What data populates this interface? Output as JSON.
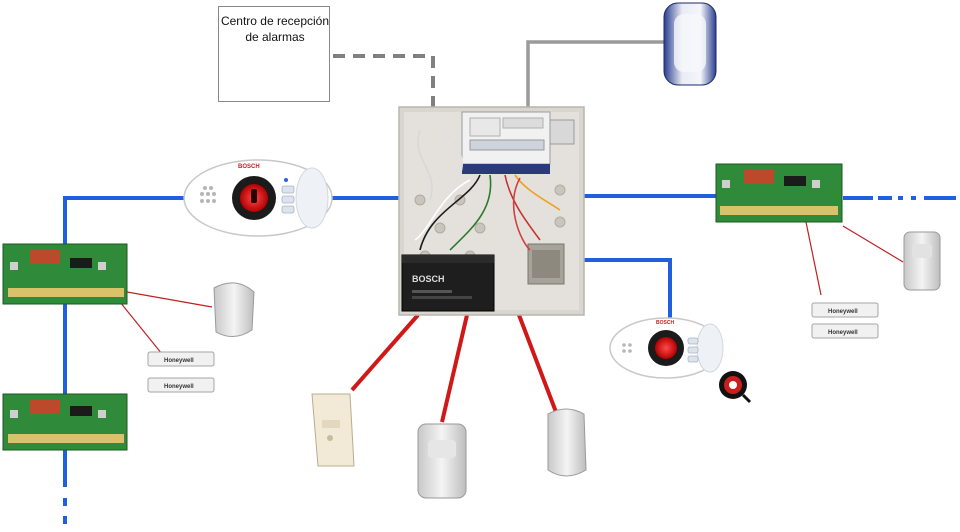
{
  "title": "Centro de recepción de alarmas",
  "central_station": {
    "line1": "Centro de recepción",
    "line2": "de alarmas"
  },
  "brand": {
    "keypad": "BOSCH",
    "battery": "BOSCH"
  },
  "door_contact_brand": "Honeywell",
  "colors": {
    "bus": "#1f5fe0",
    "sensor_wire": "#d01818",
    "phone_line": "#808080",
    "siren_wire": "#9a9a9a",
    "pcb": "#2f8a3a",
    "panel_bg": "#d9d6d0"
  }
}
